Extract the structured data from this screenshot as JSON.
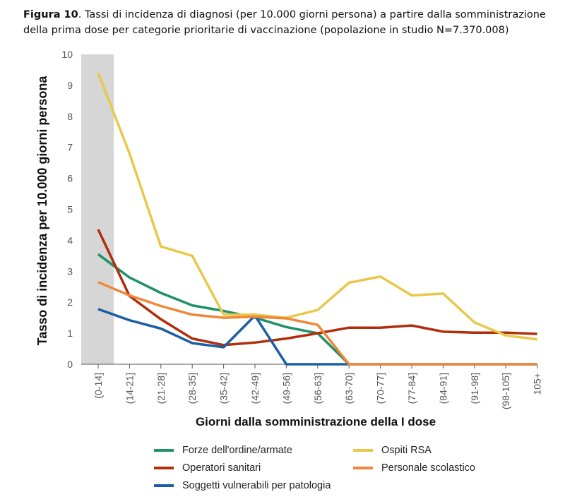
{
  "caption": {
    "label": "Figura 10",
    "text": ". Tassi di incidenza di diagnosi (per 10.000 giorni persona) a partire dalla somministrazione della prima dose per categorie prioritarie di vaccinazione (popolazione in studio N=7.370.008)"
  },
  "chart_data": {
    "type": "line",
    "ylabel": "Tasso di incidenza per 10.000 giorni persona",
    "xlabel": "Giorni dalla somministrazione della I dose",
    "ylim": [
      0,
      10
    ],
    "yticks": [
      "0",
      "1",
      "2",
      "3",
      "4",
      "5",
      "6",
      "7",
      "8",
      "9",
      "10"
    ],
    "categories": [
      "(0-14]",
      "(14-21]",
      "(21-28]",
      "(28-35]",
      "(35-42]",
      "(42-49]",
      "(49-56]",
      "(56-63]",
      "(63-70]",
      "(70-77]",
      "(77-84]",
      "(84-91]",
      "(91-98]",
      "(98-105]",
      "105+"
    ],
    "highlight_band": "(0-14]",
    "grid": false,
    "legend_position": "bottom",
    "series": [
      {
        "name": "Forze dell'ordine/armate",
        "color": "#1e9167",
        "values": [
          3.55,
          2.8,
          2.3,
          1.9,
          1.72,
          1.5,
          1.2,
          1.0,
          0,
          null,
          null,
          null,
          null,
          null,
          null
        ]
      },
      {
        "name": "Operatori sanitari",
        "color": "#b02e0c",
        "values": [
          4.35,
          2.2,
          1.45,
          0.83,
          0.62,
          0.7,
          0.83,
          1.0,
          1.18,
          1.18,
          1.25,
          1.05,
          1.02,
          1.02,
          0.98
        ]
      },
      {
        "name": "Soggetti vulnerabili per patologia",
        "color": "#1a5fa5",
        "values": [
          1.78,
          1.42,
          1.15,
          0.68,
          0.55,
          1.57,
          0,
          0,
          0,
          0,
          0,
          0,
          0,
          0,
          0
        ]
      },
      {
        "name": "Ospiti RSA",
        "color": "#e8c84a",
        "values": [
          9.4,
          6.8,
          3.8,
          3.5,
          1.6,
          1.6,
          1.5,
          1.75,
          2.63,
          2.83,
          2.22,
          2.28,
          1.35,
          0.93,
          0.8
        ]
      },
      {
        "name": "Personale scolastico",
        "color": "#f0873a",
        "values": [
          2.65,
          2.22,
          1.88,
          1.6,
          1.5,
          1.53,
          1.48,
          1.27,
          0,
          0,
          0,
          0,
          0,
          0,
          0
        ]
      }
    ]
  }
}
